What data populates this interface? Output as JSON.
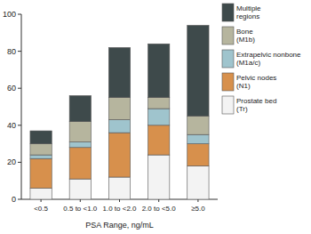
{
  "chart_data": {
    "type": "bar",
    "stacked": true,
    "legend": "right",
    "x_label": "PSA Range, ng/mL",
    "categories": [
      "<0.5",
      "0.5 to <1.0",
      "1.0 to <2.0",
      "2.0 to <5.0",
      "≥5.0"
    ],
    "series": [
      {
        "name": "Prostate bed (Tr)",
        "color": "#f3f3f3",
        "values": [
          6,
          11,
          12,
          24,
          18
        ]
      },
      {
        "name": "Pelvic nodes (N1)",
        "color": "#d7904c",
        "values": [
          16,
          17,
          24,
          16,
          12
        ]
      },
      {
        "name": "Extrapelvic nonbone (M1a/c)",
        "color": "#9fc4cd",
        "values": [
          2,
          3,
          7,
          9,
          5
        ]
      },
      {
        "name": "Bone (M1b)",
        "color": "#b6b59e",
        "values": [
          6,
          11,
          12,
          6,
          10
        ]
      },
      {
        "name": "Multiple regions",
        "color": "#3e4a4b",
        "values": [
          7,
          14,
          27,
          29,
          49
        ]
      }
    ],
    "ylim": [
      0,
      100
    ],
    "yticks": [
      0,
      20,
      40,
      60,
      80,
      100
    ],
    "grid": false
  }
}
